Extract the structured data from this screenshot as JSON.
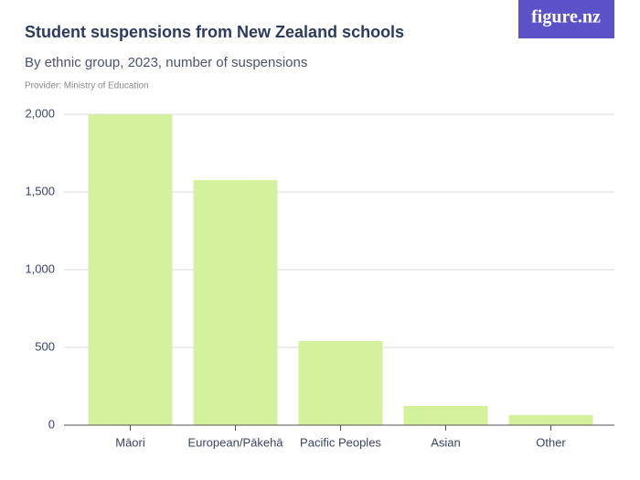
{
  "logo": "figure.nz",
  "chart_data": {
    "type": "bar",
    "title": "Student suspensions from New Zealand schools",
    "subtitle": "By ethnic group, 2023, number of suspensions",
    "source": "Provider: Ministry of Education",
    "categories": [
      "Māori",
      "European/Pākehā",
      "Pacific Peoples",
      "Asian",
      "Other"
    ],
    "values": [
      1998,
      1576,
      541,
      124,
      65
    ],
    "color": "#d4f29b",
    "ylim": [
      0,
      2000
    ],
    "yticks": [
      0,
      500,
      {
        "value": 1000,
        "label": "1,000"
      },
      {
        "value": 1500,
        "label": "1,500"
      },
      {
        "value": 2000,
        "label": "2,000"
      }
    ],
    "grid": true
  }
}
